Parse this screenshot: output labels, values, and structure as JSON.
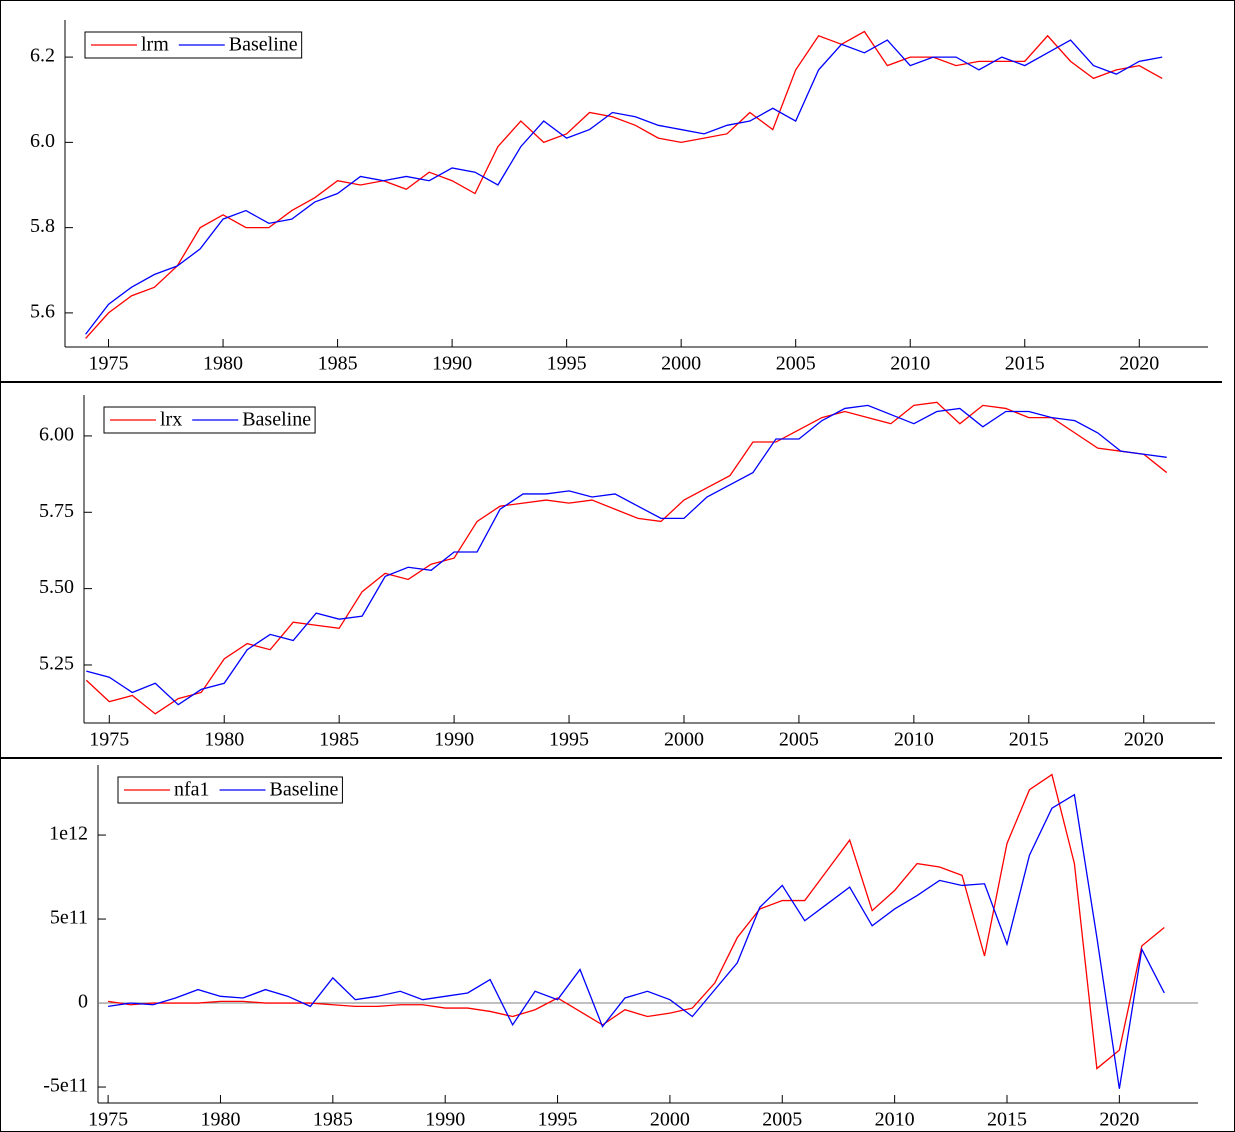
{
  "chart_data": [
    {
      "type": "line",
      "x": [
        1974,
        1975,
        1976,
        1977,
        1978,
        1979,
        1980,
        1981,
        1982,
        1983,
        1984,
        1985,
        1986,
        1987,
        1988,
        1989,
        1990,
        1991,
        1992,
        1993,
        1994,
        1995,
        1996,
        1997,
        1998,
        1999,
        2000,
        2001,
        2002,
        2003,
        2004,
        2005,
        2006,
        2007,
        2008,
        2009,
        2010,
        2011,
        2012,
        2013,
        2014,
        2015,
        2016,
        2017,
        2018,
        2019,
        2020,
        2021
      ],
      "series": [
        {
          "name": "lrm",
          "color": "#ff0000",
          "values": [
            5.54,
            5.6,
            5.64,
            5.66,
            5.71,
            5.8,
            5.83,
            5.8,
            5.8,
            5.84,
            5.87,
            5.91,
            5.9,
            5.91,
            5.89,
            5.93,
            5.91,
            5.88,
            5.99,
            6.05,
            6.0,
            6.02,
            6.07,
            6.06,
            6.04,
            6.01,
            6.0,
            6.01,
            6.02,
            6.07,
            6.03,
            6.17,
            6.25,
            6.23,
            6.26,
            6.18,
            6.2,
            6.2,
            6.18,
            6.19,
            6.19,
            6.19,
            6.25,
            6.19,
            6.15,
            6.17,
            6.18,
            6.15
          ]
        },
        {
          "name": "Baseline",
          "color": "#0000ff",
          "values": [
            5.55,
            5.62,
            5.66,
            5.69,
            5.71,
            5.75,
            5.82,
            5.84,
            5.81,
            5.82,
            5.86,
            5.88,
            5.92,
            5.91,
            5.92,
            5.91,
            5.94,
            5.93,
            5.9,
            5.99,
            6.05,
            6.01,
            6.03,
            6.07,
            6.06,
            6.04,
            6.03,
            6.02,
            6.04,
            6.05,
            6.08,
            6.05,
            6.17,
            6.23,
            6.21,
            6.24,
            6.18,
            6.2,
            6.2,
            6.17,
            6.2,
            6.18,
            6.21,
            6.24,
            6.18,
            6.16,
            6.19,
            6.2
          ]
        }
      ],
      "xlim": [
        1973.1,
        2023.0
      ],
      "ylim": [
        5.52,
        6.287
      ],
      "xticks": [
        1975,
        1980,
        1985,
        1990,
        1995,
        2000,
        2005,
        2010,
        2015,
        2020
      ],
      "yticks": [
        {
          "value": 5.6,
          "label": "5.6"
        },
        {
          "value": 5.8,
          "label": "5.8"
        },
        {
          "value": 6.0,
          "label": "6.0"
        },
        {
          "value": 6.2,
          "label": "6.2"
        }
      ],
      "legend": "upper left"
    },
    {
      "type": "line",
      "x": [
        1974,
        1975,
        1976,
        1977,
        1978,
        1979,
        1980,
        1981,
        1982,
        1983,
        1984,
        1985,
        1986,
        1987,
        1988,
        1989,
        1990,
        1991,
        1992,
        1993,
        1994,
        1995,
        1996,
        1997,
        1998,
        1999,
        2000,
        2001,
        2002,
        2003,
        2004,
        2005,
        2006,
        2007,
        2008,
        2009,
        2010,
        2011,
        2012,
        2013,
        2014,
        2015,
        2016,
        2017,
        2018,
        2019,
        2020,
        2021
      ],
      "series": [
        {
          "name": "lrx",
          "color": "#ff0000",
          "values": [
            5.2,
            5.13,
            5.15,
            5.09,
            5.14,
            5.16,
            5.27,
            5.32,
            5.3,
            5.39,
            5.38,
            5.37,
            5.49,
            5.55,
            5.53,
            5.58,
            5.6,
            5.72,
            5.77,
            5.78,
            5.79,
            5.78,
            5.79,
            5.76,
            5.73,
            5.72,
            5.79,
            5.83,
            5.87,
            5.98,
            5.98,
            6.02,
            6.06,
            6.08,
            6.06,
            6.04,
            6.1,
            6.11,
            6.04,
            6.1,
            6.09,
            6.06,
            6.06,
            6.01,
            5.96,
            5.95,
            5.94,
            5.88
          ]
        },
        {
          "name": "Baseline",
          "color": "#0000ff",
          "values": [
            5.23,
            5.21,
            5.16,
            5.19,
            5.12,
            5.17,
            5.19,
            5.3,
            5.35,
            5.33,
            5.42,
            5.4,
            5.41,
            5.54,
            5.57,
            5.56,
            5.62,
            5.62,
            5.76,
            5.81,
            5.81,
            5.82,
            5.8,
            5.81,
            5.77,
            5.73,
            5.73,
            5.8,
            5.84,
            5.88,
            5.99,
            5.99,
            6.05,
            6.09,
            6.1,
            6.07,
            6.04,
            6.08,
            6.09,
            6.03,
            6.08,
            6.08,
            6.06,
            6.05,
            6.01,
            5.95,
            5.94,
            5.93
          ]
        }
      ],
      "xlim": [
        1973.9,
        2023.1
      ],
      "ylim": [
        5.06,
        6.134
      ],
      "xticks": [
        1975,
        1980,
        1985,
        1990,
        1995,
        2000,
        2005,
        2010,
        2015,
        2020
      ],
      "yticks": [
        {
          "value": 5.25,
          "label": "5.25"
        },
        {
          "value": 5.5,
          "label": "5.50"
        },
        {
          "value": 5.75,
          "label": "5.75"
        },
        {
          "value": 6.0,
          "label": "6.00"
        }
      ],
      "legend": "upper left"
    },
    {
      "type": "line",
      "x": [
        1975,
        1976,
        1977,
        1978,
        1979,
        1980,
        1981,
        1982,
        1983,
        1984,
        1985,
        1986,
        1987,
        1988,
        1989,
        1990,
        1991,
        1992,
        1993,
        1994,
        1995,
        1996,
        1997,
        1998,
        1999,
        2000,
        2001,
        2002,
        2003,
        2004,
        2005,
        2006,
        2007,
        2008,
        2009,
        2010,
        2011,
        2012,
        2013,
        2014,
        2015,
        2016,
        2017,
        2018,
        2019,
        2020,
        2021,
        2022
      ],
      "series": [
        {
          "name": "nfa1",
          "color": "#ff0000",
          "values": [
            10000000000.0,
            -10000000000.0,
            0,
            0,
            0,
            10000000000.0,
            10000000000.0,
            0,
            0,
            0,
            -10000000000.0,
            -20000000000.0,
            -20000000000.0,
            -10000000000.0,
            -10000000000.0,
            -30000000000.0,
            -30000000000.0,
            -50000000000.0,
            -80000000000.0,
            -40000000000.0,
            30000000000.0,
            -50000000000.0,
            -130000000000.0,
            -40000000000.0,
            -80000000000.0,
            -60000000000.0,
            -30000000000.0,
            120000000000.0,
            390000000000.0,
            560000000000.0,
            610000000000.0,
            610000000000.0,
            790000000000.0,
            970000000000.0,
            550000000000.0,
            670000000000.0,
            830000000000.0,
            810000000000.0,
            760000000000.0,
            280000000000.0,
            950000000000.0,
            1270000000000.0,
            1360000000000.0,
            830000000000.0,
            -390000000000.0,
            -280000000000.0,
            340000000000.0,
            450000000000.0
          ]
        },
        {
          "name": "Baseline",
          "color": "#0000ff",
          "values": [
            -20000000000.0,
            0,
            -10000000000.0,
            30000000000.0,
            80000000000.0,
            40000000000.0,
            30000000000.0,
            80000000000.0,
            40000000000.0,
            -20000000000.0,
            150000000000.0,
            20000000000.0,
            40000000000.0,
            70000000000.0,
            20000000000.0,
            40000000000.0,
            60000000000.0,
            140000000000.0,
            -130000000000.0,
            70000000000.0,
            20000000000.0,
            200000000000.0,
            -140000000000.0,
            30000000000.0,
            70000000000.0,
            20000000000.0,
            -80000000000.0,
            80000000000.0,
            240000000000.0,
            570000000000.0,
            700000000000.0,
            490000000000.0,
            590000000000.0,
            690000000000.0,
            460000000000.0,
            560000000000.0,
            640000000000.0,
            730000000000.0,
            700000000000.0,
            710000000000.0,
            350000000000.0,
            880000000000.0,
            1160000000000.0,
            1240000000000.0,
            390000000000.0,
            -510000000000.0,
            320000000000.0,
            60000000000.0
          ]
        }
      ],
      "xlim": [
        1974.55,
        2023.5
      ],
      "ylim": [
        -595000000000.0,
        1417000000000.0
      ],
      "xticks": [
        1975,
        1980,
        1985,
        1990,
        1995,
        2000,
        2005,
        2010,
        2015,
        2020
      ],
      "yticks": [
        {
          "value": -500000000000.0,
          "label": "-5e11"
        },
        0,
        {
          "value": 500000000000.0,
          "label": "5e11"
        },
        {
          "value": 1000000000000.0,
          "label": "1e12"
        }
      ],
      "reference_line": 0,
      "legend": "upper left"
    }
  ]
}
